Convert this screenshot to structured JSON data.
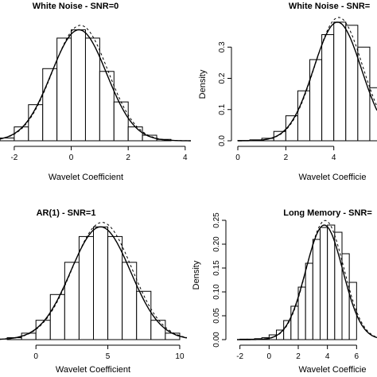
{
  "chart_data": [
    {
      "type": "bar",
      "title": "White Noise - SNR=0",
      "xlabel": "Wavelet Coefficient",
      "ylabel": "",
      "xlim": [
        -2.5,
        4.2
      ],
      "ylim": [
        0,
        0.45
      ],
      "xticks": [
        "-2",
        "0",
        "2",
        "4"
      ],
      "yticks": [],
      "bin_edges": [
        -2.5,
        -2,
        -1.5,
        -1,
        -0.5,
        0,
        0.5,
        1,
        1.5,
        2,
        2.5,
        3,
        3.5
      ],
      "values": [
        0.01,
        0.05,
        0.13,
        0.26,
        0.37,
        0.4,
        0.37,
        0.25,
        0.14,
        0.05,
        0.02,
        0.005
      ],
      "curves": [
        "fitted density (solid)",
        "normal density (dashed)"
      ]
    },
    {
      "type": "bar",
      "title": "White Noise - SNR=",
      "xlabel": "Wavelet Coefficie",
      "ylabel": "Density",
      "xlim": [
        0,
        5.8
      ],
      "ylim": [
        0,
        0.4
      ],
      "xticks": [
        "0",
        "2",
        "4"
      ],
      "yticks": [
        "0.0",
        "0.1",
        "0.2",
        "0.3"
      ],
      "bin_edges": [
        0,
        0.5,
        1,
        1.5,
        2,
        2.5,
        3,
        3.5,
        4,
        4.5,
        5,
        5.5,
        6
      ],
      "values": [
        0.001,
        0.003,
        0.008,
        0.03,
        0.08,
        0.16,
        0.26,
        0.34,
        0.38,
        0.37,
        0.3,
        0.17
      ],
      "curves": [
        "fitted density (solid)",
        "normal density (dashed)"
      ]
    },
    {
      "type": "bar",
      "title": "AR(1) - SNR=1",
      "xlabel": "Wavelet Coefficient",
      "ylabel": "",
      "xlim": [
        -2.5,
        10.5
      ],
      "ylim": [
        0,
        0.2
      ],
      "xticks": [
        "0",
        "5",
        "10"
      ],
      "yticks": [],
      "bin_edges": [
        -2,
        -1,
        0,
        1,
        2,
        3,
        4,
        5,
        6,
        7,
        8,
        9,
        10
      ],
      "values": [
        0.003,
        0.01,
        0.03,
        0.07,
        0.12,
        0.16,
        0.175,
        0.16,
        0.12,
        0.075,
        0.03,
        0.01
      ],
      "curves": [
        "fitted density (solid)",
        "normal density (dashed)"
      ]
    },
    {
      "type": "bar",
      "title": "Long Memory - SNR=",
      "xlabel": "Wavelet Coefficie",
      "ylabel": "Density",
      "xlim": [
        -2.2,
        7.4
      ],
      "ylim": [
        0,
        0.27
      ],
      "xticks": [
        "-2",
        "0",
        "2",
        "4",
        "6"
      ],
      "yticks": [
        "0.00",
        "0.05",
        "0.10",
        "0.15",
        "0.20",
        "0.25"
      ],
      "bin_edges": [
        -2,
        -1.5,
        -1,
        -0.5,
        0,
        0.5,
        1,
        1.5,
        2,
        2.5,
        3,
        3.5,
        4,
        4.5,
        5,
        5.5,
        6
      ],
      "values": [
        0.001,
        0.001,
        0.002,
        0.004,
        0.01,
        0.02,
        0.04,
        0.07,
        0.11,
        0.16,
        0.21,
        0.235,
        0.24,
        0.225,
        0.18,
        0.12
      ],
      "curves": [
        "fitted density (solid)",
        "normal density (dashed)"
      ]
    }
  ]
}
